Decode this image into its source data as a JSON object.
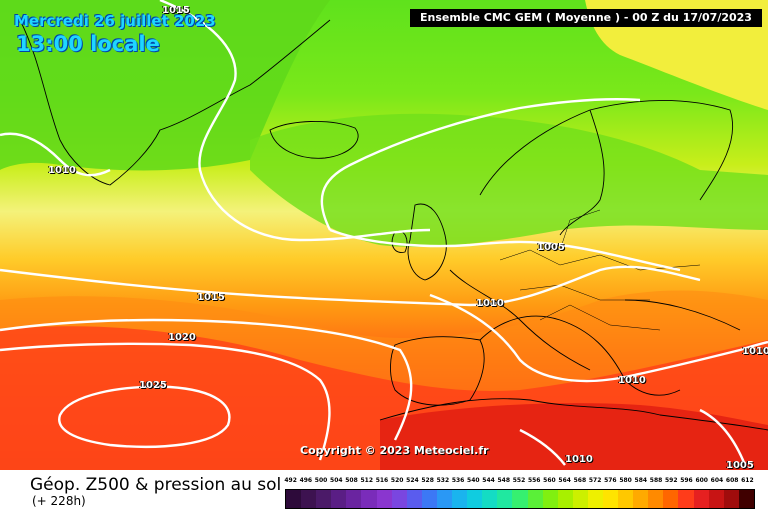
{
  "header": {
    "date": "Mercredi 26 juillet 2023",
    "local_time": "13:00 locale",
    "model_run": "Ensemble CMC GEM  ( Moyenne )  -  00 Z du 17/07/2023"
  },
  "map": {
    "copyright": "Copyright © 2023 Meteociel.fr",
    "isobars": [
      {
        "value": "1015",
        "region": "top-left near Greenland"
      },
      {
        "value": "1010",
        "region": "west of Greenland"
      },
      {
        "value": "1005",
        "region": "North Sea"
      },
      {
        "value": "1015",
        "region": "central Atlantic"
      },
      {
        "value": "1010",
        "region": "western France"
      },
      {
        "value": "1020",
        "region": "south-west Atlantic"
      },
      {
        "value": "1025",
        "region": "Azores high"
      },
      {
        "value": "1010",
        "region": "Italy / Adriatic"
      },
      {
        "value": "1010",
        "region": "eastern edge"
      },
      {
        "value": "1010",
        "region": "North Africa"
      },
      {
        "value": "1005",
        "region": "eastern Mediterranean"
      }
    ]
  },
  "footer": {
    "field_title": "Géop. Z500 & pression au sol",
    "lead_time": "(+ 228h)"
  },
  "colour_scale": {
    "labels": [
      "492",
      "496",
      "500",
      "504",
      "508",
      "512",
      "516",
      "520",
      "524",
      "528",
      "532",
      "536",
      "540",
      "544",
      "548",
      "552",
      "556",
      "560",
      "564",
      "568",
      "572",
      "576",
      "580",
      "584",
      "588",
      "592",
      "596",
      "600",
      "604",
      "608",
      "612"
    ],
    "colors": [
      "#2d0a3a",
      "#3d1250",
      "#4b1a68",
      "#5a1e85",
      "#6a24a0",
      "#7a2cba",
      "#8a36cf",
      "#7a46e0",
      "#5a5cee",
      "#3c78f5",
      "#2a98f5",
      "#1ab4ee",
      "#10cce0",
      "#14dcc4",
      "#20e8a0",
      "#36f070",
      "#5af038",
      "#80f010",
      "#a8f000",
      "#ccf000",
      "#eef000",
      "#ffe400",
      "#ffc800",
      "#ffaa00",
      "#ff8a00",
      "#ff6600",
      "#ff3c1a",
      "#e62020",
      "#c81414",
      "#a00c0c",
      "#400000"
    ]
  }
}
